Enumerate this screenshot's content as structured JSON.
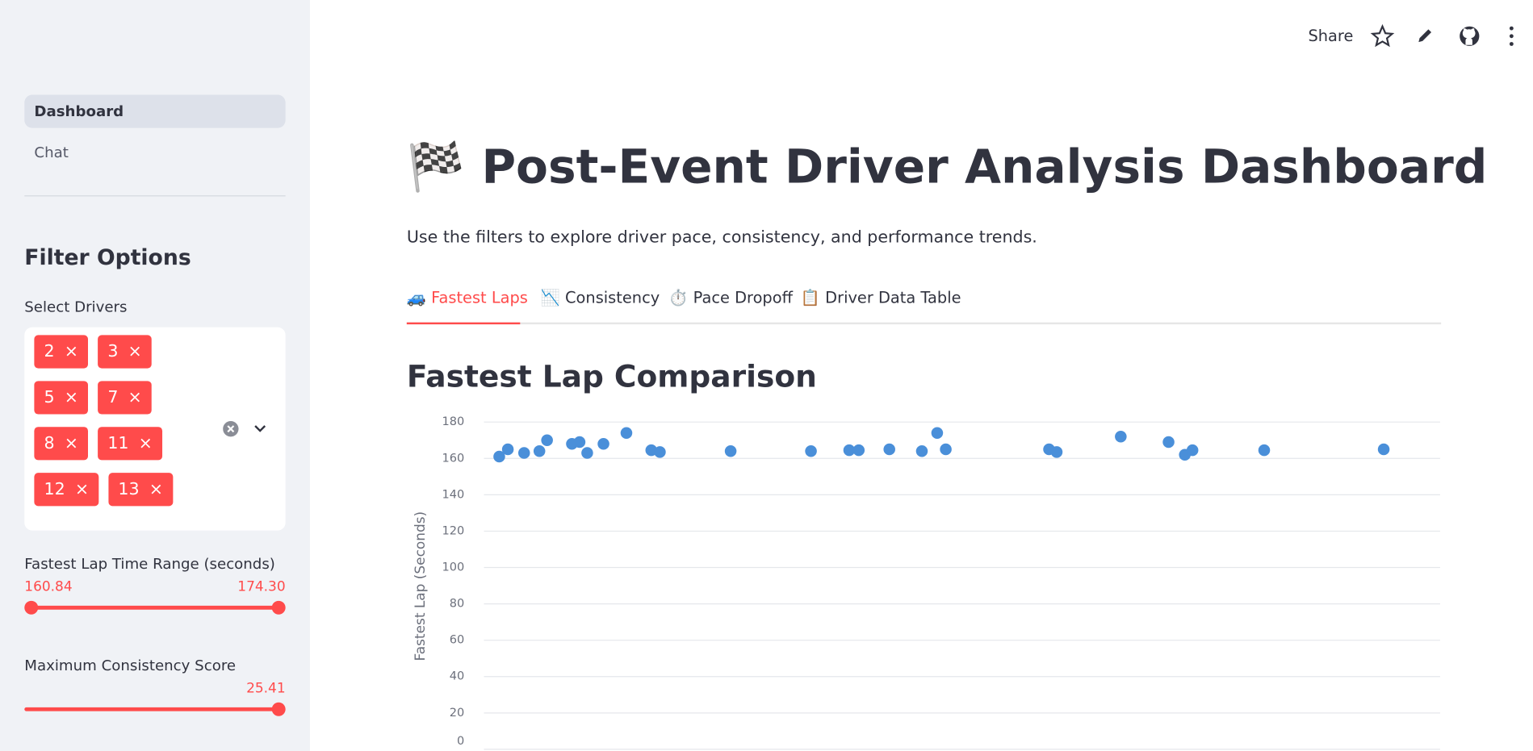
{
  "sidebar": {
    "nav": [
      "Dashboard",
      "Chat"
    ],
    "filter_title": "Filter Options",
    "drivers_label": "Select Drivers",
    "drivers": [
      "2",
      "3",
      "5",
      "7",
      "8",
      "11",
      "12",
      "13"
    ],
    "lap_range": {
      "label": "Fastest Lap Time Range (seconds)",
      "min": "160.84",
      "max": "174.30"
    },
    "consistency": {
      "label": "Maximum Consistency Score",
      "max": "25.41"
    }
  },
  "toolbar": {
    "share": "Share"
  },
  "header": {
    "title": "🏁 Post-Event Driver Analysis Dashboard",
    "caption": "Use the filters to explore driver pace, consistency, and performance trends."
  },
  "tabs": [
    "🚙 Fastest Laps",
    "📉 Consistency",
    "⏱️ Pace Dropoff",
    "📋 Driver Data Table"
  ],
  "chart_data": {
    "type": "scatter",
    "title": "Fastest Lap Comparison",
    "y_label": "Fastest Lap (Seconds)",
    "color": "#4a8fd9",
    "x": [
      1.6,
      2.5,
      4.2,
      5.8,
      6.6,
      9.2,
      10.0,
      10.8,
      12.5,
      14.9,
      17.5,
      18.4,
      25.8,
      34.2,
      38.2,
      39.2,
      42.4,
      45.8,
      47.4,
      48.3,
      59.1,
      59.9,
      66.6,
      71.6,
      73.3,
      74.1,
      81.6,
      94.1
    ],
    "values": [
      161,
      165,
      163,
      164,
      170,
      168,
      169,
      163,
      168,
      174,
      164.5,
      163.5,
      164,
      164,
      164.5,
      164.5,
      165,
      164,
      174,
      165,
      165,
      163.5,
      172,
      169,
      162,
      164.5,
      164.5,
      165
    ],
    "xlim": [
      0,
      100
    ],
    "ylim": [
      0,
      180
    ],
    "yticks": [
      0,
      20,
      40,
      60,
      80,
      100,
      120,
      140,
      160,
      180
    ],
    "grid": true
  }
}
